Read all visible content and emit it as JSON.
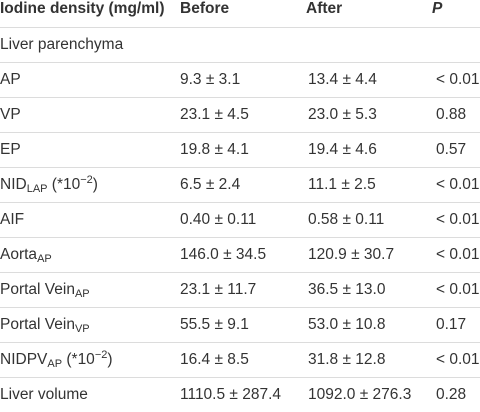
{
  "header": {
    "col_label": "Iodine density (mg/ml)",
    "col_before": "Before",
    "col_after": "After",
    "col_p": "P"
  },
  "section": "Liver parenchyma",
  "rows": [
    {
      "base": "AP",
      "sub": "",
      "suffix": "",
      "before": "9.3 ± 3.1",
      "after": "13.4 ± 4.4",
      "p": "< 0.01"
    },
    {
      "base": "VP",
      "sub": "",
      "suffix": "",
      "before": "23.1 ± 4.5",
      "after": "23.0 ± 5.3",
      "p": "0.88"
    },
    {
      "base": "EP",
      "sub": "",
      "suffix": "",
      "before": "19.8 ± 4.1",
      "after": "19.4 ± 4.6",
      "p": "0.57"
    },
    {
      "base": "NID",
      "sub": "LAP",
      "suffix_pre": " (*10",
      "suffix_sup": "−2",
      "suffix_post": ")",
      "before": "6.5 ± 2.4",
      "after": "11.1 ± 2.5",
      "p": "< 0.01"
    },
    {
      "base": "AIF",
      "sub": "",
      "suffix": "",
      "before": "0.40 ± 0.11",
      "after": "0.58 ± 0.11",
      "p": "< 0.01"
    },
    {
      "base": "Aorta",
      "sub": "AP",
      "suffix": "",
      "before": "146.0 ± 34.5",
      "after": "120.9 ± 30.7",
      "p": "< 0.01"
    },
    {
      "base": "Portal Vein",
      "sub": "AP",
      "suffix": "",
      "before": "23.1 ± 11.7",
      "after": "36.5 ± 13.0",
      "p": "< 0.01"
    },
    {
      "base": "Portal Vein",
      "sub": "VP",
      "suffix": "",
      "before": "55.5 ± 9.1",
      "after": "53.0 ± 10.8",
      "p": "0.17"
    },
    {
      "base": "NIDPV",
      "sub": "AP",
      "suffix_pre": " (*10",
      "suffix_sup": "−2",
      "suffix_post": ")",
      "before": "16.4 ± 8.5",
      "after": "31.8 ± 12.8",
      "p": "< 0.01"
    },
    {
      "base": "Liver volume",
      "sub": "",
      "suffix": "",
      "before": "1110.5 ± 287.4",
      "after": "1092.0 ± 276.3",
      "p": "0.28"
    }
  ]
}
